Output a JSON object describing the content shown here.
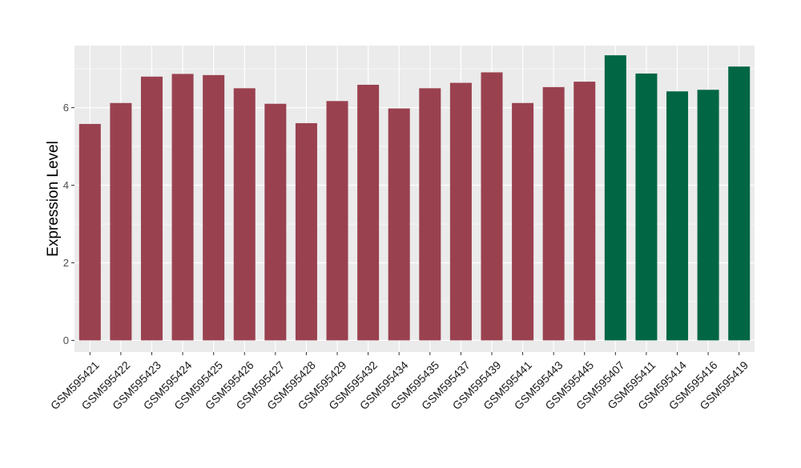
{
  "chart_data": {
    "type": "bar",
    "title": "",
    "xlabel": "",
    "ylabel": "Expression Level",
    "ylim": [
      -0.3,
      7.6
    ],
    "yticks": [
      0,
      2,
      4,
      6
    ],
    "grid": true,
    "background_color": "#ebebeb",
    "grid_color": "#ffffff",
    "categories": [
      "GSM595421",
      "GSM595422",
      "GSM595423",
      "GSM595424",
      "GSM595425",
      "GSM595426",
      "GSM595427",
      "GSM595428",
      "GSM595429",
      "GSM595432",
      "GSM595434",
      "GSM595435",
      "GSM595437",
      "GSM595439",
      "GSM595441",
      "GSM595443",
      "GSM595445",
      "GSM595407",
      "GSM595411",
      "GSM595414",
      "GSM595416",
      "GSM595419"
    ],
    "values": [
      5.58,
      6.12,
      6.8,
      6.87,
      6.84,
      6.5,
      6.1,
      5.6,
      6.17,
      6.59,
      5.98,
      6.5,
      6.64,
      6.91,
      6.12,
      6.53,
      6.67,
      7.35,
      6.88,
      6.42,
      6.46,
      7.06
    ],
    "bar_colors": [
      "#9a4150",
      "#9a4150",
      "#9a4150",
      "#9a4150",
      "#9a4150",
      "#9a4150",
      "#9a4150",
      "#9a4150",
      "#9a4150",
      "#9a4150",
      "#9a4150",
      "#9a4150",
      "#9a4150",
      "#9a4150",
      "#9a4150",
      "#9a4150",
      "#9a4150",
      "#006643",
      "#006643",
      "#006643",
      "#006643",
      "#006643"
    ]
  }
}
